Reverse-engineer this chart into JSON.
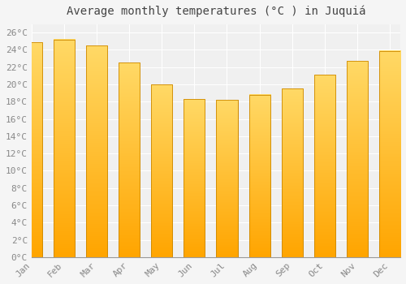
{
  "title": "Average monthly temperatures (°C ) in Juquiá",
  "months": [
    "Jan",
    "Feb",
    "Mar",
    "Apr",
    "May",
    "Jun",
    "Jul",
    "Aug",
    "Sep",
    "Oct",
    "Nov",
    "Dec"
  ],
  "values": [
    24.9,
    25.2,
    24.5,
    22.5,
    20.0,
    18.3,
    18.2,
    18.8,
    19.5,
    21.1,
    22.7,
    23.9
  ],
  "bar_color_top": "#FFD966",
  "bar_color_bottom": "#FFA500",
  "bar_edge_color": "#CC8800",
  "background_color": "#f5f5f5",
  "plot_bg_color": "#f0f0f0",
  "grid_color": "#ffffff",
  "ylim": [
    0,
    27
  ],
  "ytick_step": 2,
  "title_fontsize": 10,
  "tick_fontsize": 8,
  "font_family": "monospace"
}
